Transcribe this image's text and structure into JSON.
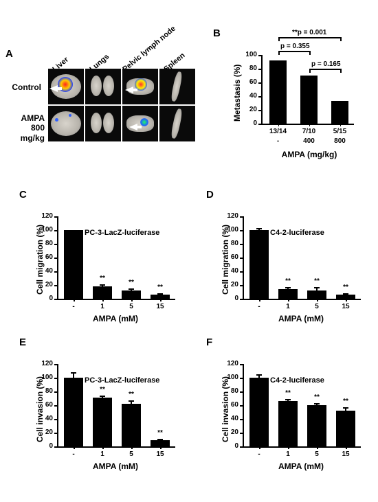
{
  "panelA": {
    "label": "A",
    "row_labels": [
      "Control",
      "AMPA\n800 mg/kg"
    ],
    "col_labels": [
      "Liver",
      "Lungs",
      "Pelvic lymph node",
      "Spleen"
    ]
  },
  "panelB": {
    "label": "B",
    "type": "bar",
    "y_title": "Metastasis (%)",
    "x_title": "AMPA (mg/kg)",
    "x_labels": [
      "-",
      "400",
      "800"
    ],
    "fractions": [
      "13/14",
      "7/10",
      "5/15"
    ],
    "values": [
      92,
      70,
      33
    ],
    "ylim": [
      0,
      100
    ],
    "ytick_step": 20,
    "bar_color": "#000000",
    "p_labels": [
      "**p = 0.001",
      "p = 0.355",
      "p = 0.165"
    ]
  },
  "panelC": {
    "label": "C",
    "type": "bar",
    "inset": "PC-3-LacZ-luciferase",
    "y_title": "Cell migration (%)",
    "x_title": "AMPA (mM)",
    "x_labels": [
      "-",
      "1",
      "5",
      "15"
    ],
    "values": [
      100,
      18,
      12,
      6
    ],
    "errors": [
      0,
      3,
      3,
      2
    ],
    "sig": [
      "",
      "**",
      "**",
      "**"
    ],
    "ylim": [
      0,
      120
    ],
    "ytick_step": 20,
    "bar_color": "#000000"
  },
  "panelD": {
    "label": "D",
    "type": "bar",
    "inset": "C4-2-luciferase",
    "y_title": "Cell migration (%)",
    "x_title": "AMPA (mM)",
    "x_labels": [
      "-",
      "1",
      "5",
      "15"
    ],
    "values": [
      100,
      14,
      12,
      6
    ],
    "errors": [
      3,
      3,
      5,
      2
    ],
    "sig": [
      "",
      "**",
      "**",
      "**"
    ],
    "ylim": [
      0,
      120
    ],
    "ytick_step": 20,
    "bar_color": "#000000"
  },
  "panelE": {
    "label": "E",
    "type": "bar",
    "inset": "PC-3-LacZ-luciferase",
    "y_title": "Cell invasion (%)",
    "x_title": "AMPA (mM)",
    "x_labels": [
      "-",
      "1",
      "5",
      "15"
    ],
    "values": [
      100,
      71,
      62,
      9
    ],
    "errors": [
      8,
      3,
      5,
      2
    ],
    "sig": [
      "",
      "**",
      "**",
      "**"
    ],
    "ylim": [
      0,
      120
    ],
    "ytick_step": 20,
    "bar_color": "#000000"
  },
  "panelF": {
    "label": "F",
    "type": "bar",
    "inset": "C4-2-luciferase",
    "y_title": "Cell invasion (%)",
    "x_title": "AMPA (mM)",
    "x_labels": [
      "-",
      "1",
      "5",
      "15"
    ],
    "values": [
      100,
      66,
      60,
      52
    ],
    "errors": [
      5,
      3,
      3,
      5
    ],
    "sig": [
      "",
      "**",
      "**",
      "**"
    ],
    "ylim": [
      0,
      120
    ],
    "ytick_step": 20,
    "bar_color": "#000000"
  }
}
